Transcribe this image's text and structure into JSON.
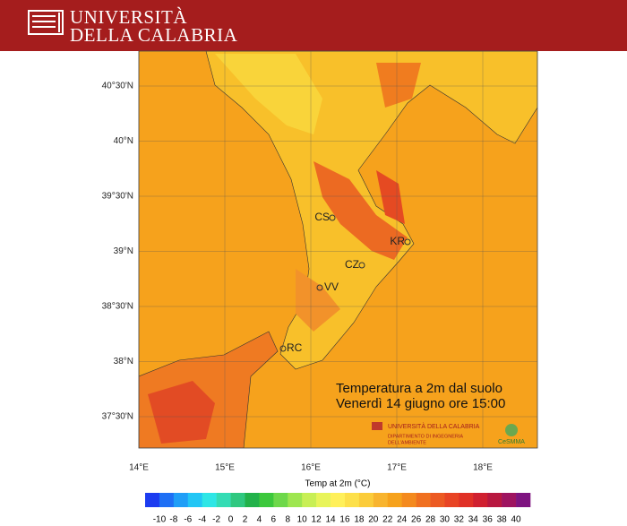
{
  "header": {
    "line1": "UNIVERSITÀ",
    "line2": "DELLA CALABRIA"
  },
  "map": {
    "lat_labels": [
      "40°30'N",
      "40°N",
      "39°30'N",
      "39°N",
      "38°30'N",
      "38°N",
      "37°30'N"
    ],
    "lon_labels": [
      "14°E",
      "15°E",
      "16°E",
      "17°E",
      "18°E"
    ],
    "cities": [
      "CS",
      "KR",
      "CZ",
      "VV",
      "RC"
    ]
  },
  "overlay": {
    "line1": "Temperatura a 2m dal suolo",
    "line2": "Venerdì 14 giugno ore 15:00"
  },
  "logos": {
    "university": "UNIVERSITÀ DELLA CALABRIA",
    "department": "DIPARTIMENTO DI INGEGNERIA",
    "department2": "DELL'AMBIENTE",
    "cesmma": "CeSMMA"
  },
  "colorbar": {
    "title": "Temp at 2m  (°C)",
    "ticks": [
      -10,
      -8,
      -6,
      -4,
      -2,
      0,
      2,
      4,
      6,
      8,
      10,
      12,
      14,
      16,
      18,
      20,
      22,
      24,
      26,
      28,
      30,
      32,
      34,
      36,
      38,
      40
    ],
    "colors": [
      "#1c3cf0",
      "#1e6ff5",
      "#1f9ef7",
      "#22c6f5",
      "#2ee6e6",
      "#34dcb4",
      "#2fc880",
      "#22b24a",
      "#3cc83c",
      "#6ed84a",
      "#9ee650",
      "#c8ef55",
      "#e8f45a",
      "#fff05a",
      "#fde04a",
      "#fbcc3a",
      "#f8b42e",
      "#f6a21c",
      "#f48a1e",
      "#f07020",
      "#ec5a22",
      "#e84424",
      "#e03026",
      "#d02030",
      "#b81840",
      "#9e1460",
      "#7e1480"
    ]
  }
}
